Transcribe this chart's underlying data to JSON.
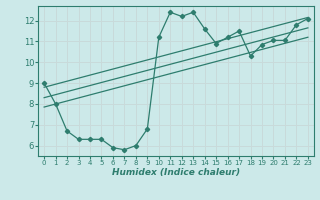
{
  "xlabel": "Humidex (Indice chaleur)",
  "bg_color": "#cce9e9",
  "grid_color": "#b0d4d4",
  "line_color": "#2e7d6e",
  "xlim": [
    -0.5,
    23.5
  ],
  "ylim": [
    5.5,
    12.7
  ],
  "xticks": [
    0,
    1,
    2,
    3,
    4,
    5,
    6,
    7,
    8,
    9,
    10,
    11,
    12,
    13,
    14,
    15,
    16,
    17,
    18,
    19,
    20,
    21,
    22,
    23
  ],
  "yticks": [
    6,
    7,
    8,
    9,
    10,
    11,
    12
  ],
  "series1_x": [
    0,
    1,
    2,
    3,
    4,
    5,
    6,
    7,
    8,
    9,
    10,
    11,
    12,
    13,
    14,
    15,
    16,
    17,
    18,
    19,
    20,
    21,
    22,
    23
  ],
  "series1_y": [
    9.0,
    8.0,
    6.7,
    6.3,
    6.3,
    6.3,
    5.9,
    5.8,
    6.0,
    6.8,
    11.2,
    12.4,
    12.2,
    12.4,
    11.6,
    10.9,
    11.2,
    11.5,
    10.3,
    10.85,
    11.05,
    11.05,
    11.8,
    12.1
  ],
  "series2_x": [
    0,
    23
  ],
  "series2_y": [
    8.8,
    12.15
  ],
  "series3_x": [
    0,
    23
  ],
  "series3_y": [
    8.3,
    11.65
  ],
  "series4_x": [
    0,
    23
  ],
  "series4_y": [
    7.85,
    11.2
  ],
  "marker_size": 2.2,
  "line_width": 0.9
}
